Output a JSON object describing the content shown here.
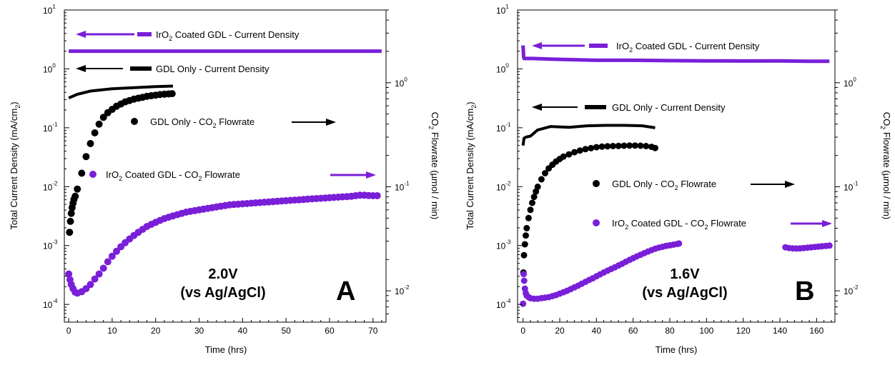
{
  "chart_data": [
    {
      "type": "scatter",
      "panel_label": "A",
      "condition_line1": "2.0V",
      "condition_line2": "(vs Ag/AgCl)",
      "xlabel": "Time (hrs)",
      "ylabel": "Total Current Density (mA/cm2)",
      "y2label": "CO2 Flowrate (µmol / min)",
      "xlim": [
        -1,
        73
      ],
      "xticks": [
        "0",
        "10",
        "20",
        "30",
        "40",
        "50",
        "60",
        "70"
      ],
      "ylim": [
        5e-05,
        10
      ],
      "yscale": "log",
      "y2lim": [
        0.005,
        5
      ],
      "y2scale": "log",
      "series": [
        {
          "name": "IrO2 Coated GDL - Current Density",
          "axis": "left",
          "kind": "line",
          "color": "#7a1fd8",
          "x": [
            0,
            72
          ],
          "y": [
            2.0,
            2.0
          ]
        },
        {
          "name": "GDL Only - Current Density",
          "axis": "left",
          "kind": "line",
          "color": "#000000",
          "x": [
            0,
            2,
            5,
            10,
            15,
            20,
            24
          ],
          "y": [
            0.32,
            0.37,
            0.42,
            0.46,
            0.48,
            0.5,
            0.51
          ]
        },
        {
          "name": "GDL Only - CO2 Flowrate",
          "axis": "right",
          "kind": "points",
          "color": "#000000",
          "x": [
            0.2,
            0.4,
            0.6,
            0.8,
            1.0,
            1.2,
            1.5,
            2,
            3,
            4,
            5,
            6,
            7,
            8,
            9,
            10,
            11,
            12,
            13,
            14,
            15,
            16,
            17,
            18,
            19,
            20,
            21,
            22,
            23,
            23.8
          ],
          "y": [
            0.0365,
            0.0465,
            0.0555,
            0.063,
            0.0695,
            0.0755,
            0.081,
            0.095,
            0.135,
            0.195,
            0.26,
            0.33,
            0.4,
            0.465,
            0.515,
            0.555,
            0.595,
            0.625,
            0.655,
            0.675,
            0.695,
            0.71,
            0.725,
            0.74,
            0.75,
            0.76,
            0.77,
            0.775,
            0.78,
            0.785
          ]
        },
        {
          "name": "IrO2 Coated GDL - CO2 Flowrate",
          "axis": "right",
          "kind": "points",
          "color": "#7a1fd8",
          "x": [
            0,
            0.3,
            0.6,
            1,
            1.5,
            2,
            3,
            4,
            5,
            6,
            7,
            8,
            9,
            10,
            11,
            12,
            13,
            14,
            15,
            16,
            17,
            18,
            19,
            20,
            21,
            22,
            23,
            24,
            25,
            26,
            27,
            28,
            29,
            30,
            31,
            32,
            33,
            34,
            35,
            36,
            37,
            38,
            39,
            40,
            41,
            42,
            43,
            44,
            45,
            46,
            47,
            48,
            49,
            50,
            51,
            52,
            53,
            54,
            55,
            56,
            57,
            58,
            59,
            60,
            61,
            62,
            63,
            64,
            65,
            66,
            67,
            68,
            69,
            70,
            71
          ],
          "y": [
            0.0145,
            0.0128,
            0.0115,
            0.0105,
            0.0097,
            0.0095,
            0.0098,
            0.0105,
            0.0115,
            0.013,
            0.0145,
            0.0165,
            0.019,
            0.0215,
            0.024,
            0.0265,
            0.029,
            0.0315,
            0.034,
            0.0365,
            0.039,
            0.0415,
            0.0435,
            0.0455,
            0.0475,
            0.0495,
            0.051,
            0.0525,
            0.054,
            0.0555,
            0.057,
            0.058,
            0.059,
            0.06,
            0.061,
            0.062,
            0.063,
            0.064,
            0.065,
            0.066,
            0.067,
            0.0675,
            0.068,
            0.0685,
            0.069,
            0.0695,
            0.07,
            0.0705,
            0.071,
            0.0715,
            0.072,
            0.0725,
            0.073,
            0.0735,
            0.074,
            0.0745,
            0.075,
            0.0755,
            0.076,
            0.0765,
            0.077,
            0.0775,
            0.078,
            0.0785,
            0.079,
            0.0795,
            0.08,
            0.0805,
            0.081,
            0.082,
            0.083,
            0.083,
            0.0825,
            0.082,
            0.082
          ]
        }
      ]
    },
    {
      "type": "scatter",
      "panel_label": "B",
      "condition_line1": "1.6V",
      "condition_line2": "(vs Ag/AgCl)",
      "xlabel": "Time (hrs)",
      "ylabel": "Total Current Density (mA/cm2)",
      "y2label": "CO2 Flowrate (µmol / min)",
      "xlim": [
        -3,
        170
      ],
      "xticks": [
        "0",
        "20",
        "40",
        "60",
        "80",
        "100",
        "120",
        "140",
        "160"
      ],
      "ylim": [
        5e-05,
        10
      ],
      "yscale": "log",
      "y2lim": [
        0.005,
        5
      ],
      "y2scale": "log",
      "series": [
        {
          "name": "IrO2 Coated GDL - Current Density",
          "axis": "left",
          "kind": "line",
          "color": "#7a1fd8",
          "x": [
            0,
            0.3,
            0.6,
            5,
            20,
            40,
            60,
            80,
            100,
            120,
            140,
            155,
            167
          ],
          "y": [
            2.5,
            1.6,
            1.5,
            1.5,
            1.45,
            1.4,
            1.4,
            1.38,
            1.37,
            1.36,
            1.37,
            1.35,
            1.35
          ]
        },
        {
          "name": "GDL Only - Current Density",
          "axis": "left",
          "kind": "line",
          "color": "#000000",
          "x": [
            0,
            0.5,
            1,
            2,
            4,
            8,
            15,
            25,
            35,
            45,
            55,
            65,
            72
          ],
          "y": [
            0.05,
            0.066,
            0.068,
            0.07,
            0.072,
            0.092,
            0.105,
            0.102,
            0.108,
            0.11,
            0.11,
            0.108,
            0.1
          ]
        },
        {
          "name": "GDL Only - CO2 Flowrate",
          "axis": "right",
          "kind": "points",
          "color": "#000000",
          "x": [
            0.2,
            0.5,
            1,
            1.5,
            2,
            3,
            4,
            5,
            6,
            7,
            8,
            10,
            12,
            14,
            16,
            18,
            20,
            22,
            25,
            28,
            31,
            34,
            37,
            40,
            43,
            46,
            49,
            52,
            55,
            58,
            61,
            64,
            67,
            70,
            72
          ],
          "y": [
            0.015,
            0.022,
            0.028,
            0.034,
            0.04,
            0.05,
            0.06,
            0.07,
            0.08,
            0.09,
            0.1,
            0.118,
            0.135,
            0.15,
            0.163,
            0.175,
            0.185,
            0.195,
            0.205,
            0.215,
            0.223,
            0.23,
            0.235,
            0.24,
            0.243,
            0.245,
            0.246,
            0.247,
            0.248,
            0.249,
            0.249,
            0.248,
            0.246,
            0.242,
            0.236
          ]
        },
        {
          "name": "IrO2 Coated GDL - CO2 Flowrate",
          "axis": "right",
          "kind": "points",
          "color": "#7a1fd8",
          "x": [
            0,
            0.3,
            0.6,
            1,
            1.5,
            2,
            3,
            4,
            6,
            8,
            10,
            12,
            14,
            16,
            18,
            20,
            22,
            24,
            26,
            28,
            30,
            32,
            34,
            36,
            38,
            40,
            42,
            44,
            46,
            48,
            50,
            52,
            54,
            56,
            58,
            60,
            62,
            64,
            66,
            68,
            70,
            72,
            74,
            76,
            78,
            80,
            82,
            84,
            85,
            143,
            145,
            147,
            149,
            151,
            153,
            155,
            157,
            159,
            161,
            163,
            165,
            167
          ],
          "y": [
            0.0075,
            0.0145,
            0.0125,
            0.0105,
            0.0095,
            0.009,
            0.0087,
            0.0085,
            0.0084,
            0.0084,
            0.0085,
            0.0086,
            0.0087,
            0.0089,
            0.0091,
            0.0094,
            0.0097,
            0.01,
            0.0104,
            0.0108,
            0.0112,
            0.0117,
            0.0122,
            0.0127,
            0.0132,
            0.0138,
            0.0144,
            0.015,
            0.0156,
            0.0162,
            0.0168,
            0.0175,
            0.0182,
            0.019,
            0.0198,
            0.0206,
            0.0214,
            0.0222,
            0.023,
            0.0238,
            0.0246,
            0.0254,
            0.026,
            0.0265,
            0.027,
            0.0274,
            0.0278,
            0.0282,
            0.0285,
            0.0262,
            0.0258,
            0.0256,
            0.0255,
            0.0256,
            0.0258,
            0.026,
            0.0262,
            0.0264,
            0.0266,
            0.0268,
            0.027,
            0.0272
          ]
        }
      ]
    }
  ],
  "legend_text": {
    "A": {
      "iro2_cd_pre": "IrO",
      "iro2_cd_sub": "2",
      "iro2_cd_post": " Coated GDL - Current Density",
      "gdl_cd": "GDL Only - Current Density",
      "gdl_co2_pre": "GDL Only - CO",
      "gdl_co2_sub": "2",
      "gdl_co2_post": " Flowrate",
      "iro2_co2_pre": "IrO",
      "iro2_co2_sub": "2",
      "iro2_co2_post": " Coated GDL - CO",
      "iro2_co2_sub2": "2",
      "iro2_co2_post2": " Flowrate"
    },
    "B": {
      "iro2_cd_pre": "IrO",
      "iro2_cd_sub": "2",
      "iro2_cd_post": " Coated GDL - Current Density",
      "gdl_cd": "GDL Only - Current Density",
      "gdl_co2_pre": "GDL Only - CO",
      "gdl_co2_sub": "2",
      "gdl_co2_post": " Flowrate",
      "iro2_co2_pre": "IrO",
      "iro2_co2_sub": "2",
      "iro2_co2_post": " Coated GDL - CO",
      "iro2_co2_sub2": "2",
      "iro2_co2_post2": " Flowrate"
    }
  },
  "axis_text": {
    "ylabel_pre": "Total Current Density (mA/cm",
    "ylabel_sub": "2",
    "ylabel_post": ")",
    "y2label_pre": "CO",
    "y2label_sub": "2",
    "y2label_post": " Flowrate (µmol / min)",
    "ytick_base": "10",
    "yticks_left_exp": [
      "1",
      "0",
      "-1",
      "-2",
      "-3",
      "-4"
    ],
    "yticks_right_exp": [
      "0",
      "-1",
      "-2"
    ]
  }
}
